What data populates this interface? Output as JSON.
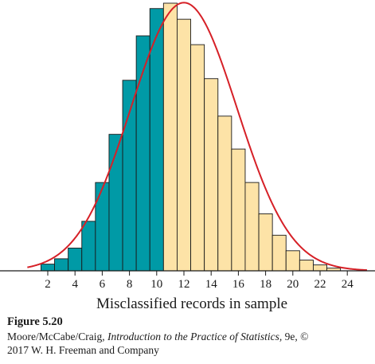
{
  "chart_data": {
    "type": "bar",
    "xlabel": "Misclassified records in sample",
    "x_ticks": [
      2,
      4,
      6,
      8,
      10,
      12,
      14,
      16,
      18,
      20,
      22,
      24
    ],
    "xlim": [
      -1,
      26
    ],
    "ylim": [
      0,
      0.1
    ],
    "bins": [
      {
        "x": 2,
        "y": 0.0025
      },
      {
        "x": 3,
        "y": 0.0045
      },
      {
        "x": 4,
        "y": 0.0085
      },
      {
        "x": 5,
        "y": 0.0185
      },
      {
        "x": 6,
        "y": 0.033
      },
      {
        "x": 7,
        "y": 0.051
      },
      {
        "x": 8,
        "y": 0.0712
      },
      {
        "x": 9,
        "y": 0.0878
      },
      {
        "x": 10,
        "y": 0.098
      },
      {
        "x": 11,
        "y": 0.1
      },
      {
        "x": 12,
        "y": 0.094
      },
      {
        "x": 13,
        "y": 0.0845
      },
      {
        "x": 14,
        "y": 0.0718
      },
      {
        "x": 15,
        "y": 0.0578
      },
      {
        "x": 16,
        "y": 0.0455
      },
      {
        "x": 17,
        "y": 0.033
      },
      {
        "x": 18,
        "y": 0.0213
      },
      {
        "x": 19,
        "y": 0.0133
      },
      {
        "x": 20,
        "y": 0.0075
      },
      {
        "x": 21,
        "y": 0.004
      },
      {
        "x": 22,
        "y": 0.0022
      },
      {
        "x": 23,
        "y": 0.001
      }
    ],
    "shade_max_x": 10,
    "curve": {
      "mean": 12,
      "sd": 3.9,
      "peak": 0.1002
    },
    "colors": {
      "shaded": "#009aa6",
      "unshaded": "#fde3a7",
      "bar_outline": "#1a1a1a",
      "curve": "#d62027"
    }
  },
  "caption": {
    "figure_label": "Figure 5.20",
    "credit_authors": "Moore/McCabe/Craig, ",
    "credit_title": "Introduction to the Practice of Statistics,",
    "credit_rest": " 9e, ©",
    "credit_line2": "2017 W. H. Freeman and Company"
  }
}
